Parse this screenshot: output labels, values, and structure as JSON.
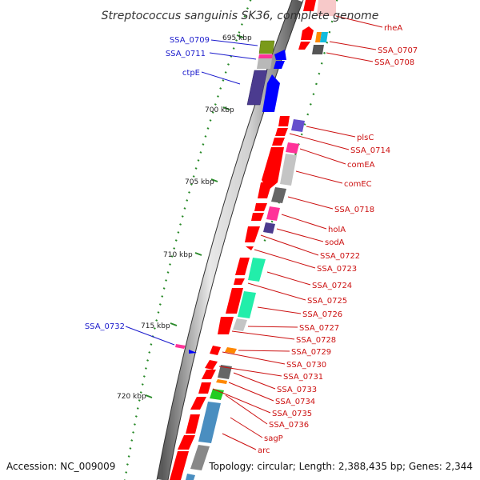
{
  "title": "Streptococcus sanguinis SK36, complete genome",
  "footer": {
    "accession": "Accession: NC_009009",
    "summary": "Topology: circular; Length: 2,388,435 bp; Genes: 2,344"
  },
  "ticks": [
    "695 kbp",
    "700 kbp",
    "705 kbp",
    "710 kbp",
    "715 kbp",
    "720 kbp"
  ],
  "labels": {
    "minus_color": "#1a1acc",
    "plus_color": "#cc1111",
    "minus": [
      "SSA_0709",
      "SSA_0711",
      "ctpE",
      "SSA_0732"
    ],
    "plus": [
      "rheA",
      "SSA_0707",
      "SSA_0708",
      "plsC",
      "SSA_0714",
      "comEA",
      "comEC",
      "SSA_0718",
      "holA",
      "sodA",
      "SSA_0722",
      "SSA_0723",
      "SSA_0724",
      "SSA_0725",
      "SSA_0726",
      "SSA_0727",
      "SSA_0728",
      "SSA_0729",
      "SSA_0730",
      "SSA_0731",
      "SSA_0733",
      "SSA_0734",
      "SSA_0735",
      "SSA_0736",
      "sagP",
      "arc"
    ]
  },
  "colors": {
    "forward_cds": "#ff0000",
    "reverse_cds": "#0000ff",
    "backbone": "#aaaaaa",
    "tick": "#2a8a2a"
  }
}
